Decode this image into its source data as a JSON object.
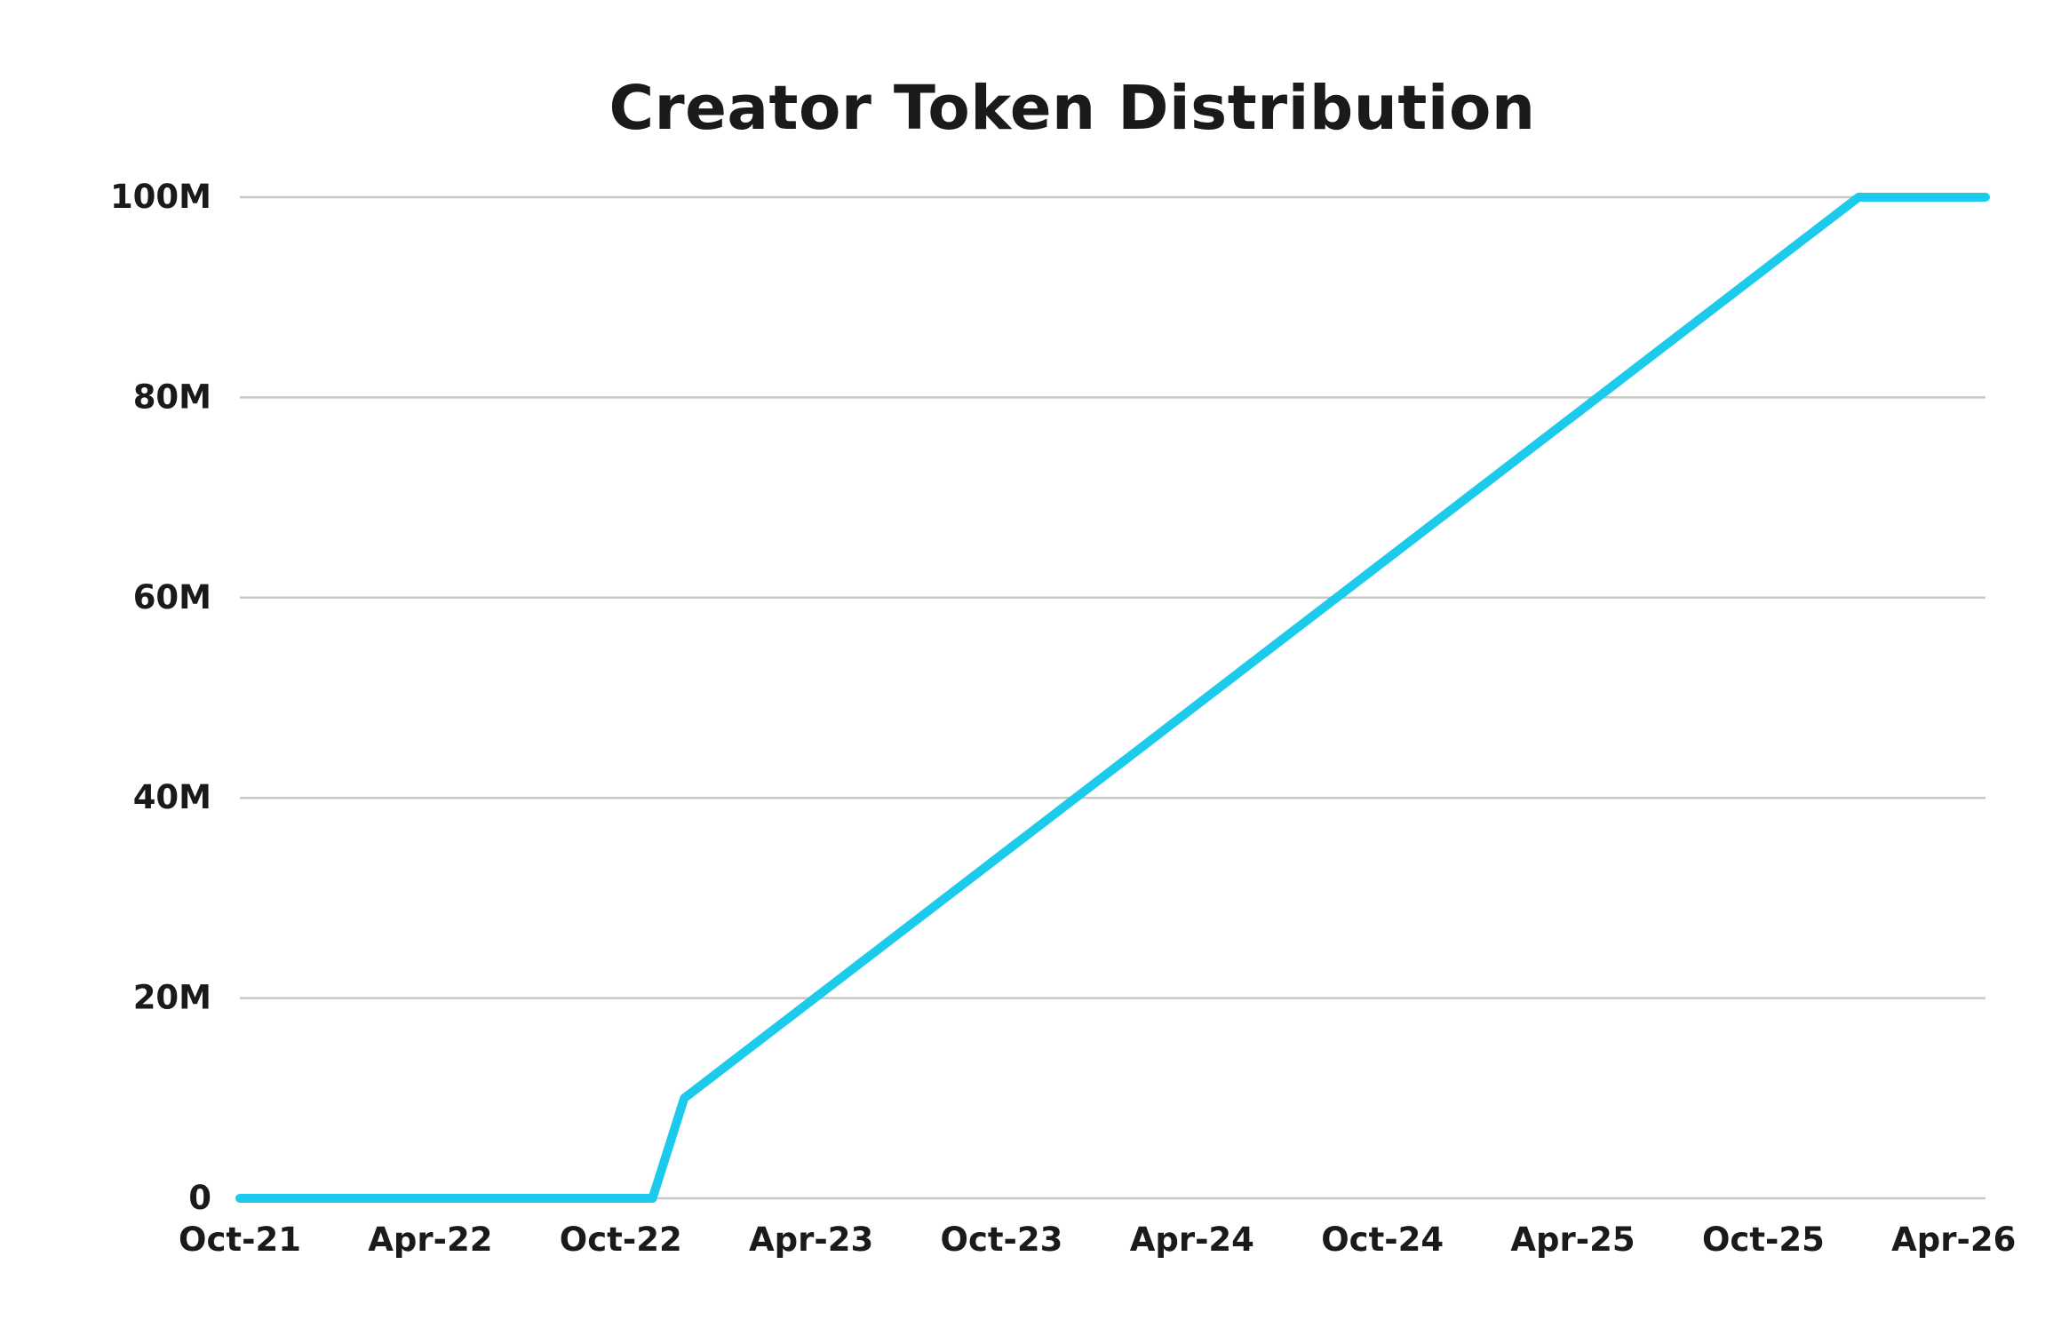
{
  "chart_data": {
    "type": "line",
    "title": "Creator Token Distribution",
    "xlabel": "",
    "ylabel": "",
    "x_ticks": [
      "Oct-21",
      "Apr-22",
      "Oct-22",
      "Apr-23",
      "Oct-23",
      "Apr-24",
      "Oct-24",
      "Apr-25",
      "Oct-25",
      "Apr-26"
    ],
    "y_ticks": [
      "0",
      "20M",
      "40M",
      "60M",
      "80M",
      "100M"
    ],
    "xlim": [
      "2021-10",
      "2026-05"
    ],
    "ylim": [
      0,
      100000000
    ],
    "grid": "horizontal",
    "legend": "none",
    "series": [
      {
        "color": "#1ccbeb",
        "points": [
          {
            "x": "2021-10",
            "y": 0
          },
          {
            "x": "2022-11",
            "y": 0
          },
          {
            "x": "2022-12",
            "y": 10000000
          },
          {
            "x": "2026-01",
            "y": 100000000
          },
          {
            "x": "2026-05",
            "y": 100000000
          }
        ]
      }
    ]
  }
}
